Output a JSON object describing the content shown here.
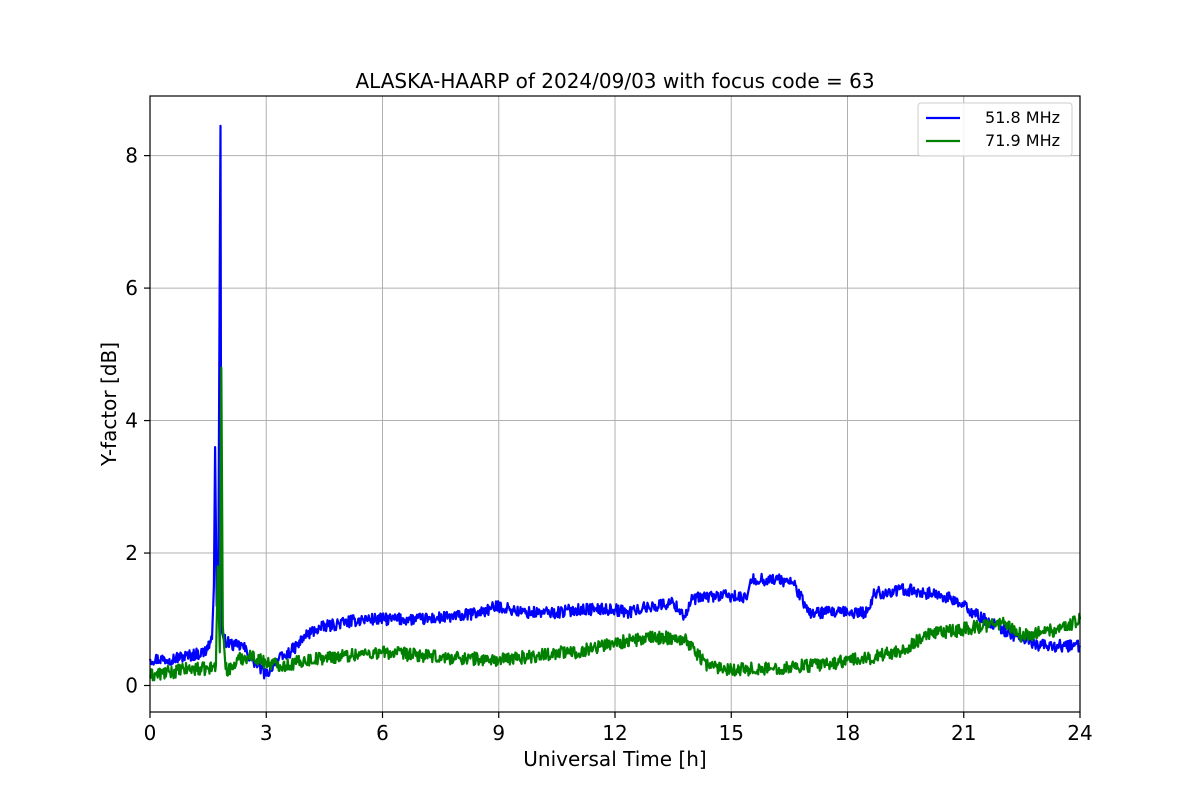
{
  "chart_data": {
    "type": "line",
    "title": "ALASKA-HAARP of 2024/09/03 with focus code = 63",
    "xlabel": "Universal Time [h]",
    "ylabel": "Y-factor [dB]",
    "xlim": [
      0,
      24
    ],
    "ylim": [
      -0.4,
      8.9
    ],
    "xticks": [
      0,
      3,
      6,
      9,
      12,
      15,
      18,
      21,
      24
    ],
    "xtick_labels": [
      "0",
      "3",
      "6",
      "9",
      "12",
      "15",
      "18",
      "21",
      "24"
    ],
    "yticks": [
      0,
      2,
      4,
      6,
      8
    ],
    "ytick_labels": [
      "0",
      "2",
      "4",
      "6",
      "8"
    ],
    "grid": true,
    "legend_position": "top-right",
    "series": [
      {
        "name": "51.8 MHz",
        "color": "#0000ff",
        "noise": 0.09,
        "x": [
          0,
          0.5,
          1.0,
          1.4,
          1.6,
          1.65,
          1.68,
          1.72,
          1.76,
          1.8,
          1.82,
          1.84,
          1.86,
          1.9,
          2.0,
          2.2,
          2.4,
          2.6,
          2.8,
          3.0,
          3.2,
          3.5,
          3.8,
          4.0,
          4.3,
          4.6,
          5.0,
          5.5,
          6.0,
          6.5,
          7.0,
          7.5,
          8.0,
          8.5,
          9.0,
          9.3,
          9.6,
          10.0,
          10.5,
          11.0,
          11.5,
          12.0,
          12.3,
          12.6,
          13.0,
          13.5,
          13.8,
          14.0,
          14.5,
          15.0,
          15.4,
          15.5,
          15.8,
          16.2,
          16.6,
          17.0,
          17.5,
          18.0,
          18.5,
          18.7,
          19.0,
          19.5,
          20.0,
          20.5,
          21.0,
          21.5,
          22.0,
          22.5,
          23.0,
          23.5,
          24.0
        ],
        "y": [
          0.4,
          0.4,
          0.45,
          0.5,
          0.7,
          1.5,
          3.6,
          1.2,
          1.4,
          6.5,
          8.45,
          1.5,
          0.8,
          0.7,
          0.65,
          0.6,
          0.6,
          0.4,
          0.3,
          0.15,
          0.35,
          0.45,
          0.6,
          0.75,
          0.85,
          0.9,
          0.95,
          1.0,
          1.0,
          1.0,
          1.0,
          1.02,
          1.05,
          1.1,
          1.2,
          1.15,
          1.1,
          1.1,
          1.1,
          1.15,
          1.15,
          1.15,
          1.1,
          1.15,
          1.2,
          1.25,
          1.05,
          1.3,
          1.35,
          1.35,
          1.3,
          1.6,
          1.6,
          1.6,
          1.55,
          1.1,
          1.1,
          1.1,
          1.1,
          1.4,
          1.4,
          1.45,
          1.4,
          1.35,
          1.2,
          1.0,
          0.85,
          0.7,
          0.6,
          0.6,
          0.6
        ]
      },
      {
        "name": "71.9 MHz",
        "color": "#008000",
        "noise": 0.1,
        "x": [
          0,
          0.5,
          1.0,
          1.5,
          1.7,
          1.75,
          1.8,
          1.84,
          1.88,
          1.95,
          2.1,
          2.3,
          2.6,
          3.0,
          3.5,
          4.0,
          4.5,
          5.0,
          5.5,
          6.0,
          6.5,
          7.0,
          7.5,
          8.0,
          8.5,
          9.0,
          9.5,
          10.0,
          10.5,
          11.0,
          11.5,
          12.0,
          12.5,
          13.0,
          13.5,
          13.8,
          14.1,
          14.4,
          15.0,
          15.5,
          16.0,
          16.5,
          17.0,
          17.5,
          18.0,
          18.5,
          19.0,
          19.5,
          20.0,
          20.5,
          21.0,
          21.5,
          22.0,
          22.5,
          23.0,
          23.5,
          24.0
        ],
        "y": [
          0.15,
          0.2,
          0.25,
          0.25,
          0.3,
          1.8,
          0.5,
          4.8,
          0.9,
          0.25,
          0.25,
          0.4,
          0.45,
          0.35,
          0.3,
          0.38,
          0.42,
          0.45,
          0.48,
          0.5,
          0.48,
          0.45,
          0.42,
          0.42,
          0.4,
          0.38,
          0.42,
          0.45,
          0.5,
          0.5,
          0.58,
          0.65,
          0.68,
          0.72,
          0.72,
          0.7,
          0.5,
          0.3,
          0.25,
          0.25,
          0.25,
          0.28,
          0.3,
          0.32,
          0.38,
          0.4,
          0.48,
          0.55,
          0.75,
          0.8,
          0.85,
          0.9,
          0.95,
          0.75,
          0.8,
          0.85,
          1.0
        ]
      }
    ]
  }
}
